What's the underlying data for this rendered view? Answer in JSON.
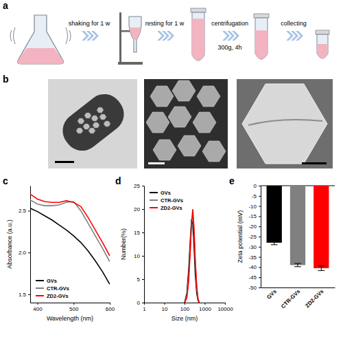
{
  "panels": [
    "a",
    "b",
    "c",
    "d",
    "e"
  ],
  "workflow": {
    "steps": [
      {
        "label": "shaking for 1 w"
      },
      {
        "label": "resting for 1 w"
      },
      {
        "label": "centrifugation",
        "detail": "300g, 4h"
      },
      {
        "label": "collecting"
      }
    ]
  },
  "chart_data": [
    {
      "type": "line",
      "x_label": "Wavelength (nm)",
      "y_label": "Absorbance (a.u.)",
      "x": [
        380,
        400,
        420,
        440,
        460,
        480,
        500,
        520,
        540,
        560,
        580,
        600
      ],
      "xlim": [
        380,
        600
      ],
      "xticks": [
        400,
        500,
        600
      ],
      "ylim": [
        1.4,
        2.8
      ],
      "yticks": [
        1.5,
        {
          "value": 2,
          "label": "2.0"
        },
        2.5
      ],
      "legend": "lower left",
      "series": [
        {
          "name": "GVs",
          "color": "#000000",
          "values": [
            2.53,
            2.49,
            2.44,
            2.39,
            2.33,
            2.27,
            2.2,
            2.12,
            2.02,
            1.9,
            1.77,
            1.62
          ]
        },
        {
          "name": "CTR-GVs",
          "color": "#808080",
          "values": [
            2.63,
            2.58,
            2.56,
            2.56,
            2.57,
            2.6,
            2.61,
            2.5,
            2.35,
            2.2,
            2.05,
            1.89
          ]
        },
        {
          "name": "ZD2-GVs",
          "color": "#ff0000",
          "values": [
            2.7,
            2.64,
            2.61,
            2.6,
            2.6,
            2.62,
            2.6,
            2.55,
            2.42,
            2.27,
            2.12,
            1.96
          ]
        }
      ]
    },
    {
      "type": "line",
      "x_label": "Size (nm)",
      "y_label": "Number(%)",
      "log": "x",
      "x": [
        100,
        130,
        160,
        190,
        220,
        255,
        295,
        340,
        400,
        460,
        530
      ],
      "xlim": [
        1,
        10000
      ],
      "xticks": [
        1,
        10,
        100,
        1000,
        10000
      ],
      "ylim": [
        0,
        25
      ],
      "yticks": [
        0,
        5,
        10,
        15,
        20,
        25
      ],
      "legend": "upper left",
      "series": [
        {
          "name": "GVs",
          "color": "#000000",
          "values": [
            0,
            2,
            7,
            13,
            17.5,
            17,
            12,
            6,
            2,
            0.5,
            0
          ]
        },
        {
          "name": "CTR-GVs",
          "color": "#808080",
          "values": [
            0,
            1.5,
            5.5,
            11.5,
            17,
            19,
            15,
            8.5,
            3,
            0.8,
            0
          ]
        },
        {
          "name": "ZD2-GVs",
          "color": "#ff0000",
          "values": [
            0,
            1,
            4.5,
            10.5,
            16.5,
            20,
            16,
            9,
            3.5,
            1,
            0
          ]
        }
      ]
    },
    {
      "type": "bar",
      "y_label": "Zeta potential (mV)",
      "categories": [
        "GVs",
        "CTR-GVs",
        "ZD2-GVs"
      ],
      "values": [
        -28,
        -39,
        -40.5
      ],
      "errors": [
        1,
        0.8,
        1.2
      ],
      "colors": [
        "#000000",
        "#808080",
        "#ff0000"
      ],
      "ylim": [
        -50,
        0
      ],
      "yticks": [
        0,
        -5,
        -10,
        -15,
        -20,
        -25,
        -30,
        -35,
        -40,
        -45,
        -50
      ]
    }
  ]
}
